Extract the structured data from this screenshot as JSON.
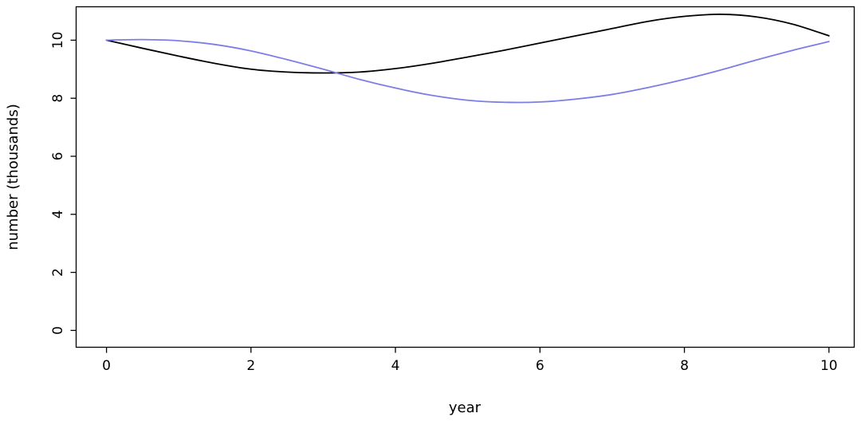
{
  "figure": {
    "background": "#ffffff",
    "axis_color": "#000000"
  },
  "chart_data": {
    "type": "line",
    "title": "",
    "xlabel": "year",
    "ylabel": "number (thousands)",
    "grid": false,
    "legend": "none",
    "x_ticks": [
      0,
      2,
      4,
      6,
      8,
      10
    ],
    "y_ticks": [
      0,
      2,
      4,
      6,
      8,
      10
    ],
    "xlim": [
      -0.42,
      10.35
    ],
    "ylim": [
      -0.58,
      11.15
    ],
    "x": [
      0,
      0.5,
      1,
      1.5,
      2,
      2.5,
      3,
      3.5,
      4,
      4.5,
      5,
      5.5,
      6,
      6.5,
      7,
      7.5,
      8,
      8.5,
      9,
      9.5,
      10
    ],
    "series": [
      {
        "name": "black-line",
        "color": "#000000",
        "values": [
          10.0,
          9.72,
          9.45,
          9.2,
          9.0,
          8.9,
          8.87,
          8.9,
          9.02,
          9.2,
          9.42,
          9.65,
          9.9,
          10.15,
          10.4,
          10.65,
          10.82,
          10.89,
          10.8,
          10.55,
          10.15
        ]
      },
      {
        "name": "blue-line",
        "color": "#7d7de8",
        "values": [
          10.0,
          10.02,
          9.98,
          9.85,
          9.63,
          9.33,
          9.0,
          8.65,
          8.35,
          8.1,
          7.93,
          7.86,
          7.87,
          7.97,
          8.13,
          8.37,
          8.65,
          8.97,
          9.32,
          9.65,
          9.95
        ]
      }
    ]
  }
}
